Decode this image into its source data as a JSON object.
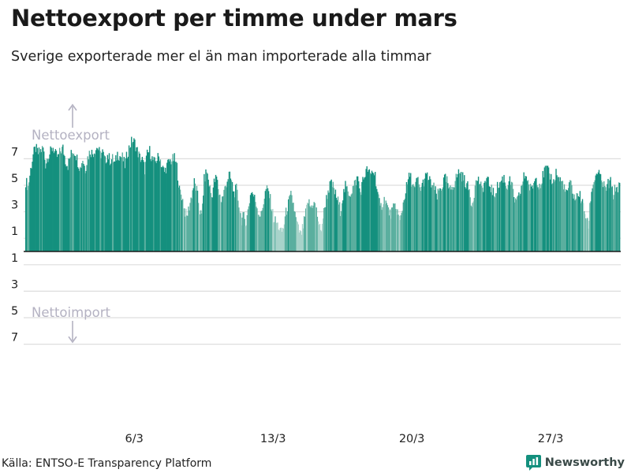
{
  "header": {
    "title": "Nettoexport per timme under mars",
    "subtitle": "Sverige exporterade mer el än man importerade alla timmar"
  },
  "footer": {
    "source": "Källa: ENTSO-E Transparency Platform",
    "brand": "Newsworthy"
  },
  "colors": {
    "high": "#14907e",
    "mid": "#5aaf9f",
    "low": "#a8d3ca",
    "grid": "#dedede",
    "zero_line": "#1a1a1a",
    "annotation": "#b4b2c2",
    "tick_text": "#222222"
  },
  "chart_data": {
    "type": "bar",
    "title": "Nettoexport per timme under mars",
    "subtitle": "Sverige exporterade mer el än man importerade alla timmar",
    "unit": "",
    "ylim": [
      -8.7,
      8.5
    ],
    "y_ticks": [
      {
        "value": 7,
        "label": "7"
      },
      {
        "value": 5,
        "label": "5"
      },
      {
        "value": 3,
        "label": "3"
      },
      {
        "value": 1,
        "label": "1"
      },
      {
        "value": -1,
        "label": "1"
      },
      {
        "value": -3,
        "label": "3"
      },
      {
        "value": -5,
        "label": "5"
      },
      {
        "value": -7,
        "label": "7"
      }
    ],
    "x_ticks": [
      {
        "day": 6,
        "label": "6/3"
      },
      {
        "day": 13,
        "label": "13/3"
      },
      {
        "day": 20,
        "label": "20/3"
      },
      {
        "day": 27,
        "label": "27/3"
      }
    ],
    "annotations": {
      "export_label": "Nettoexport",
      "import_label": "Nettoimport"
    },
    "grid": true,
    "x_start": "2022-03-01",
    "hours_per_day": 24,
    "daily": [
      {
        "day": 1,
        "shape": [
          5.3,
          4.9,
          6.2,
          7.3,
          7.8,
          7.4,
          7.6,
          7.8
        ]
      },
      {
        "day": 2,
        "shape": [
          6.6,
          7.2,
          7.5,
          7.9,
          7.3,
          7.1,
          7.6,
          7.8
        ]
      },
      {
        "day": 3,
        "shape": [
          6.9,
          6.5,
          7.2,
          7.6,
          7.5,
          6.8,
          6.3,
          7.0
        ]
      },
      {
        "day": 4,
        "shape": [
          6.2,
          7.1,
          7.6,
          7.4,
          7.7,
          7.9,
          7.3,
          7.5
        ]
      },
      {
        "day": 5,
        "shape": [
          6.8,
          7.3,
          6.9,
          7.0,
          6.6,
          7.4,
          7.2,
          7.1
        ]
      },
      {
        "day": 6,
        "shape": [
          6.5,
          7.4,
          8.0,
          8.4,
          8.2,
          7.6,
          7.1,
          6.9
        ]
      },
      {
        "day": 7,
        "shape": [
          6.2,
          7.3,
          7.6,
          7.0,
          6.7,
          7.0,
          7.2,
          6.4
        ]
      },
      {
        "day": 8,
        "shape": [
          6.0,
          6.5,
          6.8,
          6.9,
          7.0,
          6.4,
          4.6,
          4.2
        ]
      },
      {
        "day": 9,
        "shape": [
          3.2,
          2.6,
          3.4,
          4.3,
          5.2,
          4.6,
          3.3,
          2.6
        ]
      },
      {
        "day": 10,
        "shape": [
          5.4,
          6.1,
          5.1,
          4.1,
          5.2,
          5.6,
          4.4,
          3.8
        ]
      },
      {
        "day": 11,
        "shape": [
          4.5,
          5.2,
          5.8,
          5.3,
          4.4,
          4.7,
          3.6,
          2.4
        ]
      },
      {
        "day": 12,
        "shape": [
          2.6,
          2.2,
          3.5,
          4.6,
          4.2,
          3.6,
          2.9,
          2.7
        ]
      },
      {
        "day": 13,
        "shape": [
          3.8,
          4.7,
          4.5,
          3.6,
          2.5,
          2.2,
          1.9,
          1.4
        ]
      },
      {
        "day": 14,
        "shape": [
          1.8,
          2.9,
          3.6,
          4.2,
          3.6,
          2.4,
          1.7,
          1.2
        ]
      },
      {
        "day": 15,
        "shape": [
          1.9,
          2.9,
          3.8,
          3.3,
          3.7,
          3.4,
          2.4,
          1.4
        ]
      },
      {
        "day": 16,
        "shape": [
          2.6,
          3.7,
          4.6,
          5.1,
          4.9,
          4.3,
          3.8,
          3.1
        ]
      },
      {
        "day": 17,
        "shape": [
          4.2,
          4.9,
          4.5,
          4.4,
          4.8,
          5.2,
          5.6,
          4.4
        ]
      },
      {
        "day": 18,
        "shape": [
          5.3,
          5.9,
          6.2,
          5.7,
          6.1,
          5.8,
          4.4,
          3.2
        ]
      },
      {
        "day": 19,
        "shape": [
          3.7,
          4.0,
          3.3,
          2.8,
          3.1,
          3.4,
          3.0,
          2.2
        ]
      },
      {
        "day": 20,
        "shape": [
          3.3,
          4.3,
          5.1,
          5.8,
          5.1,
          4.6,
          5.6,
          4.7
        ]
      },
      {
        "day": 21,
        "shape": [
          5.0,
          5.5,
          5.7,
          5.3,
          5.0,
          4.7,
          4.1,
          4.7
        ]
      },
      {
        "day": 22,
        "shape": [
          4.9,
          5.5,
          5.3,
          4.5,
          4.9,
          5.2,
          5.7,
          6.1
        ]
      },
      {
        "day": 23,
        "shape": [
          5.7,
          5.4,
          5.0,
          4.6,
          3.5,
          4.5,
          5.5,
          5.3
        ]
      },
      {
        "day": 24,
        "shape": [
          4.6,
          5.1,
          5.4,
          5.1,
          4.7,
          4.2,
          4.8,
          5.0
        ]
      },
      {
        "day": 25,
        "shape": [
          5.4,
          5.6,
          4.8,
          5.4,
          5.1,
          4.1,
          3.6,
          4.1
        ]
      },
      {
        "day": 26,
        "shape": [
          4.8,
          5.6,
          5.8,
          5.0,
          4.6,
          5.2,
          5.6,
          5.1
        ]
      },
      {
        "day": 27,
        "shape": [
          5.2,
          5.9,
          6.3,
          5.9,
          5.6,
          5.2,
          6.0,
          5.5
        ]
      },
      {
        "day": 28,
        "shape": [
          5.3,
          5.1,
          4.3,
          4.8,
          5.1,
          4.3,
          3.9,
          4.5
        ]
      },
      {
        "day": 29,
        "shape": [
          4.0,
          3.4,
          2.7,
          1.8,
          4.1,
          5.2,
          5.7,
          6.1
        ]
      },
      {
        "day": 30,
        "shape": [
          5.4,
          5.1,
          4.6,
          5.1,
          5.2,
          4.3,
          4.8,
          4.9
        ]
      }
    ]
  }
}
